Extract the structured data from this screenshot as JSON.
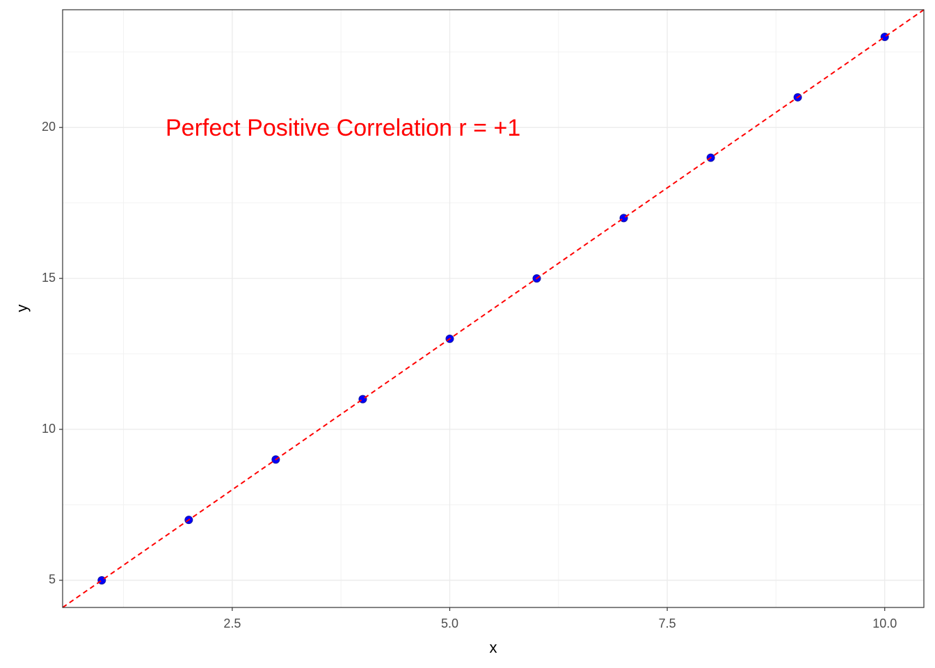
{
  "chart_data": {
    "type": "scatter",
    "annotation": "Perfect Positive Correlation r = +1",
    "annotation_color": "#ff0000",
    "x_label": "x",
    "y_label": "y",
    "x": [
      1,
      2,
      3,
      4,
      5,
      6,
      7,
      8,
      9,
      10
    ],
    "series": [
      {
        "name": "y",
        "color": "#0000ff",
        "values": [
          5,
          7,
          9,
          11,
          13,
          15,
          17,
          19,
          21,
          23
        ]
      }
    ],
    "reference_line": {
      "slope": 2,
      "intercept": 3,
      "color": "#ff0000",
      "dashed": true
    },
    "xlim": [
      0.55,
      10.45
    ],
    "xticks": [
      {
        "value": 2.5,
        "label": "2.5"
      },
      {
        "value": 5,
        "label": "5.0"
      },
      {
        "value": 7.5,
        "label": "7.5"
      },
      {
        "value": 10,
        "label": "10.0"
      }
    ],
    "ylim": [
      4.1,
      23.9
    ],
    "yticks": [
      5,
      10,
      15,
      20
    ],
    "grid": true
  }
}
